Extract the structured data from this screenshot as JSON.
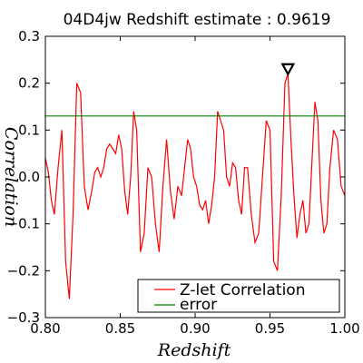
{
  "chart_data": {
    "type": "line",
    "title": "04D4jw Redshift estimate : 0.9619",
    "xlabel": "Redshift",
    "ylabel": "Correlation",
    "xlim": [
      0.8,
      1.0
    ],
    "ylim": [
      -0.3,
      0.3
    ],
    "x_ticks": [
      "0.80",
      "0.85",
      "0.90",
      "0.95",
      "1.00"
    ],
    "y_ticks": [
      "0.3",
      "0.2",
      "0.1",
      "0.0",
      "−0.1",
      "−0.2",
      "−0.3"
    ],
    "grid": false,
    "legend_position": "lower-right",
    "series": [
      {
        "name": "Z-let Correlation",
        "color": "#ff0000",
        "x": [
          0.8,
          0.802,
          0.804,
          0.806,
          0.8085,
          0.811,
          0.8135,
          0.816,
          0.8185,
          0.821,
          0.8235,
          0.826,
          0.8285,
          0.831,
          0.833,
          0.835,
          0.837,
          0.839,
          0.841,
          0.843,
          0.845,
          0.847,
          0.849,
          0.851,
          0.853,
          0.855,
          0.857,
          0.859,
          0.861,
          0.8635,
          0.866,
          0.8685,
          0.871,
          0.8735,
          0.876,
          0.8785,
          0.881,
          0.8835,
          0.886,
          0.8885,
          0.891,
          0.893,
          0.895,
          0.897,
          0.899,
          0.901,
          0.903,
          0.905,
          0.907,
          0.909,
          0.911,
          0.913,
          0.915,
          0.917,
          0.919,
          0.921,
          0.923,
          0.925,
          0.927,
          0.929,
          0.931,
          0.933,
          0.935,
          0.9375,
          0.94,
          0.9425,
          0.945,
          0.9475,
          0.95,
          0.9525,
          0.955,
          0.9575,
          0.96,
          0.962,
          0.964,
          0.966,
          0.968,
          0.97,
          0.972,
          0.974,
          0.976,
          0.978,
          0.98,
          0.982,
          0.984,
          0.986,
          0.988,
          0.99,
          0.9925,
          0.995,
          0.9975,
          1.0
        ],
        "y": [
          0.04,
          0.01,
          -0.05,
          -0.08,
          0.02,
          0.1,
          -0.18,
          -0.26,
          -0.08,
          0.2,
          0.18,
          -0.02,
          -0.07,
          -0.03,
          0.01,
          0.02,
          0.0,
          0.02,
          0.06,
          0.07,
          0.06,
          0.05,
          0.09,
          0.06,
          -0.03,
          -0.08,
          0.0,
          0.14,
          0.1,
          -0.16,
          -0.12,
          0.02,
          0.0,
          -0.1,
          -0.16,
          -0.02,
          0.08,
          -0.03,
          -0.09,
          -0.02,
          -0.04,
          0.02,
          0.08,
          0.06,
          0.0,
          -0.02,
          -0.06,
          -0.07,
          -0.05,
          -0.1,
          -0.06,
          0.0,
          0.14,
          0.12,
          0.1,
          0.0,
          -0.02,
          0.03,
          0.02,
          -0.05,
          -0.08,
          0.02,
          0.02,
          -0.08,
          -0.14,
          -0.12,
          0.0,
          0.12,
          0.1,
          -0.18,
          -0.2,
          -0.04,
          0.2,
          0.22,
          0.08,
          -0.04,
          -0.13,
          -0.08,
          -0.05,
          -0.12,
          -0.1,
          0.03,
          0.16,
          0.12,
          -0.05,
          -0.12,
          -0.1,
          0.02,
          0.1,
          0.08,
          -0.02,
          -0.04
        ]
      },
      {
        "name": "error",
        "color": "#008000",
        "x": [
          0.8,
          1.0
        ],
        "y": [
          0.13,
          0.13
        ]
      }
    ],
    "marker": {
      "x": 0.962,
      "y": 0.225,
      "shape": "triangle-down"
    }
  }
}
